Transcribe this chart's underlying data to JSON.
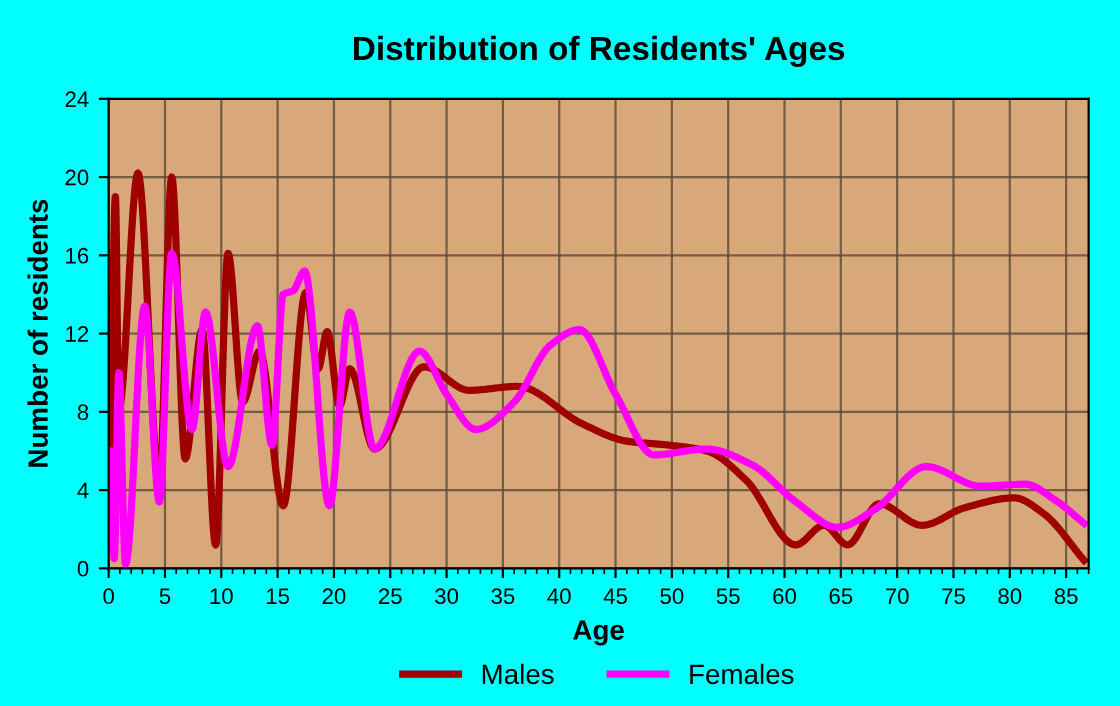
{
  "chart_data": {
    "type": "line",
    "title": "Distribution of Residents' Ages",
    "xlabel": "Age",
    "ylabel": "Number of residents",
    "xlim": [
      0,
      87
    ],
    "xticks": [
      0,
      5,
      10,
      15,
      20,
      25,
      30,
      35,
      40,
      45,
      50,
      55,
      60,
      65,
      70,
      75,
      80,
      85
    ],
    "ylim": [
      0,
      24
    ],
    "yticks": [
      0,
      4,
      8,
      12,
      16,
      20,
      24
    ],
    "grid": true,
    "legend": "bottom",
    "marker": "none",
    "line_style": "solid",
    "series": [
      {
        "name": "Males",
        "color": "#a00000",
        "x": [
          0.2,
          0.6,
          0.9,
          2.6,
          4.5,
          5.6,
          6.8,
          8.3,
          9.5,
          10.6,
          11.9,
          13.4,
          15.5,
          17.5,
          18.6,
          19.4,
          20.5,
          21.4,
          23.6,
          28,
          32,
          36.3,
          42,
          46,
          49.7,
          53.1,
          56.6,
          61,
          63.5,
          65.6,
          68.4,
          72.2,
          76,
          80.4,
          83,
          86.6
        ],
        "values": [
          6.3,
          19,
          8.1,
          20.2,
          4.4,
          20,
          5.6,
          12.2,
          1.2,
          16.1,
          8.5,
          11.1,
          3.2,
          14.1,
          10.2,
          12.1,
          8.3,
          10.2,
          6.1,
          10.3,
          9.1,
          9.3,
          7.4,
          6.5,
          6.3,
          6.0,
          4.5,
          1.2,
          2.2,
          1.2,
          3.3,
          2.2,
          3.1,
          3.6,
          2.8,
          0.4
        ]
      },
      {
        "name": "Females",
        "color": "#ff00ff",
        "x": [
          0.2,
          0.5,
          0.9,
          1.5,
          3.2,
          4.5,
          5.6,
          7.4,
          8.6,
          10.6,
          13.2,
          14.5,
          15.5,
          16.4,
          17.4,
          19.6,
          21.4,
          23.6,
          27.6,
          30,
          32.6,
          36,
          39.2,
          41.8,
          45,
          48.4,
          53.1,
          57.1,
          61,
          64.7,
          68,
          72.6,
          77.4,
          81.4,
          84,
          86.6
        ],
        "values": [
          6,
          0.5,
          10,
          0.2,
          13.4,
          3.4,
          16.1,
          7.1,
          13.1,
          5.2,
          12.4,
          6.3,
          14,
          14.2,
          15.2,
          3.2,
          13.1,
          6.1,
          11.1,
          8.9,
          7.1,
          8.5,
          11.4,
          12.2,
          8.9,
          5.8,
          6.1,
          5.3,
          3.4,
          2.1,
          3.0,
          5.2,
          4.2,
          4.3,
          3.5,
          2.3
        ]
      }
    ]
  }
}
